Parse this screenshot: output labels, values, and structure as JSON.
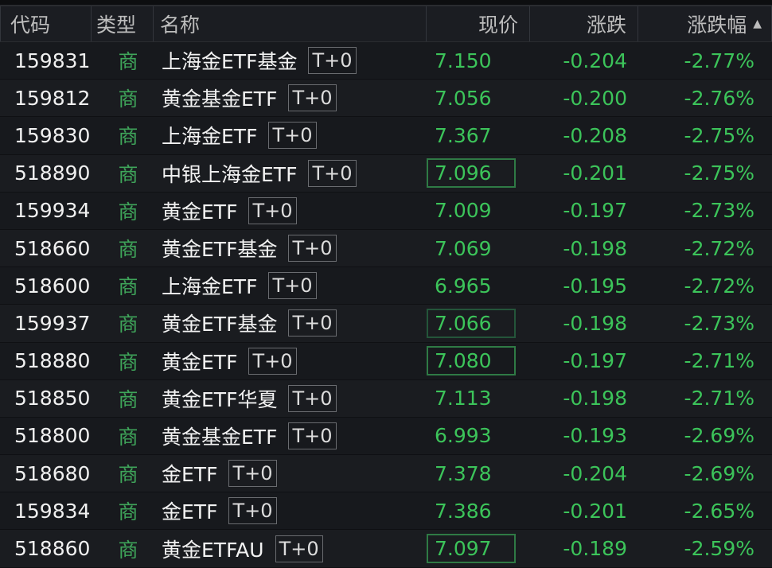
{
  "columns": {
    "code": "代码",
    "type": "类型",
    "name": "名称",
    "price": "现价",
    "change": "涨跌",
    "pct": "涨跌幅",
    "sort_icon": "triangle-up-icon"
  },
  "colors": {
    "down": "#3cc45a",
    "type": "#3fa55a",
    "background": "#16181c"
  },
  "rows": [
    {
      "code": "159831",
      "type": "商",
      "name": "上海金ETF基金",
      "tag": "T+0",
      "price": "7.150",
      "change": "-0.204",
      "pct": "-2.77%",
      "box": ""
    },
    {
      "code": "159812",
      "type": "商",
      "name": "黄金基金ETF",
      "tag": "T+0",
      "price": "7.056",
      "change": "-0.200",
      "pct": "-2.76%",
      "box": ""
    },
    {
      "code": "159830",
      "type": "商",
      "name": "上海金ETF",
      "tag": "T+0",
      "price": "7.367",
      "change": "-0.208",
      "pct": "-2.75%",
      "box": ""
    },
    {
      "code": "518890",
      "type": "商",
      "name": "中银上海金ETF",
      "tag": "T+0",
      "price": "7.096",
      "change": "-0.201",
      "pct": "-2.75%",
      "box": "box"
    },
    {
      "code": "159934",
      "type": "商",
      "name": "黄金ETF",
      "tag": "T+0",
      "price": "7.009",
      "change": "-0.197",
      "pct": "-2.73%",
      "box": ""
    },
    {
      "code": "518660",
      "type": "商",
      "name": "黄金ETF基金",
      "tag": "T+0",
      "price": "7.069",
      "change": "-0.198",
      "pct": "-2.72%",
      "box": ""
    },
    {
      "code": "518600",
      "type": "商",
      "name": "上海金ETF",
      "tag": "T+0",
      "price": "6.965",
      "change": "-0.195",
      "pct": "-2.72%",
      "box": ""
    },
    {
      "code": "159937",
      "type": "商",
      "name": "黄金ETF基金",
      "tag": "T+0",
      "price": "7.066",
      "change": "-0.198",
      "pct": "-2.73%",
      "box": "box2"
    },
    {
      "code": "518880",
      "type": "商",
      "name": "黄金ETF",
      "tag": "T+0",
      "price": "7.080",
      "change": "-0.197",
      "pct": "-2.71%",
      "box": "box"
    },
    {
      "code": "518850",
      "type": "商",
      "name": "黄金ETF华夏",
      "tag": "T+0",
      "price": "7.113",
      "change": "-0.198",
      "pct": "-2.71%",
      "box": ""
    },
    {
      "code": "518800",
      "type": "商",
      "name": "黄金基金ETF",
      "tag": "T+0",
      "price": "6.993",
      "change": "-0.193",
      "pct": "-2.69%",
      "box": ""
    },
    {
      "code": "518680",
      "type": "商",
      "name": "金ETF",
      "tag": "T+0",
      "price": "7.378",
      "change": "-0.204",
      "pct": "-2.69%",
      "box": ""
    },
    {
      "code": "159834",
      "type": "商",
      "name": "金ETF",
      "tag": "T+0",
      "price": "7.386",
      "change": "-0.201",
      "pct": "-2.65%",
      "box": ""
    },
    {
      "code": "518860",
      "type": "商",
      "name": "黄金ETFAU",
      "tag": "T+0",
      "price": "7.097",
      "change": "-0.189",
      "pct": "-2.59%",
      "box": "box"
    }
  ]
}
